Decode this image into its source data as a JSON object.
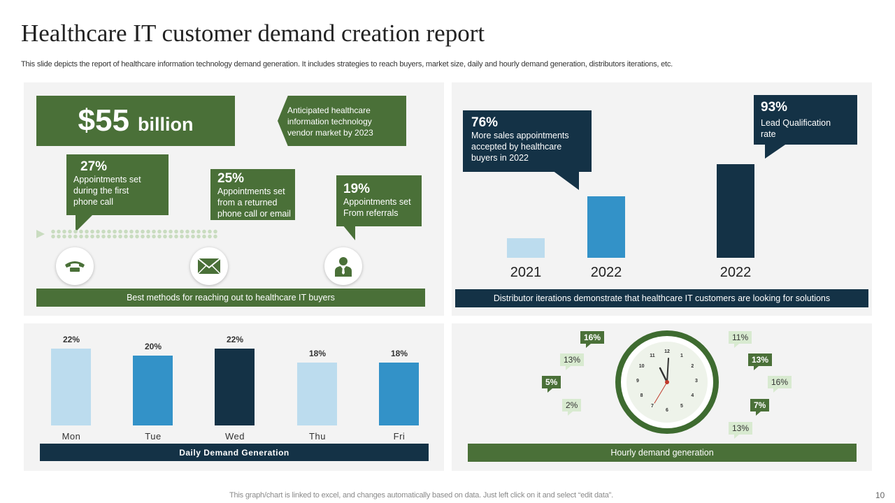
{
  "title": "Healthcare IT customer demand creation report",
  "subtitle": "This slide depicts the report of healthcare information technology demand generation. It includes strategies to reach buyers, market size, daily and hourly demand generation, distributors iterations, etc.",
  "market": {
    "amount": "$55",
    "unit": "billion",
    "description": "Anticipated healthcare information technology vendor market by 2023"
  },
  "methods": {
    "phone": {
      "pct": "27%",
      "text": "Appointments set during the first phone call",
      "icon": "phone-icon"
    },
    "returned": {
      "pct": "25%",
      "text": "Appointments set from a returned phone call or email",
      "icon": "envelope-icon"
    },
    "referrals": {
      "pct": "19%",
      "text": "Appointments set From referrals",
      "icon": "person-icon"
    },
    "footer": "Best methods for reaching out to healthcare IT buyers"
  },
  "distributor": {
    "callout1": {
      "pct": "76%",
      "text": "More sales appointments accepted by healthcare buyers in 2022"
    },
    "callout2": {
      "pct": "93%",
      "text": "Lead Qualification rate"
    },
    "years": [
      "2021",
      "2022",
      "2022"
    ],
    "footer": "Distributor iterations demonstrate that healthcare IT customers are looking for solutions"
  },
  "chart_data": {
    "type": "bar",
    "categories": [
      "Mon",
      "Tue",
      "Wed",
      "Thu",
      "Fri"
    ],
    "values": [
      22,
      20,
      22,
      18,
      18
    ],
    "labels": [
      "22%",
      "20%",
      "22%",
      "18%",
      "18%"
    ],
    "colors": [
      "#bcdcee",
      "#3392c8",
      "#143246",
      "#bcdcee",
      "#3392c8"
    ],
    "title": "Daily Demand Generation"
  },
  "hourly": {
    "left_tags": [
      "16%",
      "13%",
      "5%",
      "2%"
    ],
    "right_tags": [
      "11%",
      "13%",
      "16%",
      "7%",
      "13%"
    ],
    "clock_numerals": [
      "12",
      "1",
      "2",
      "3",
      "4",
      "5",
      "6",
      "7",
      "8",
      "9",
      "10",
      "11"
    ],
    "footer": "Hourly demand generation"
  },
  "footer_note": "This graph/chart is linked to excel, and changes automatically based on data. Just left click on it and select “edit data”.",
  "page_number": "10"
}
